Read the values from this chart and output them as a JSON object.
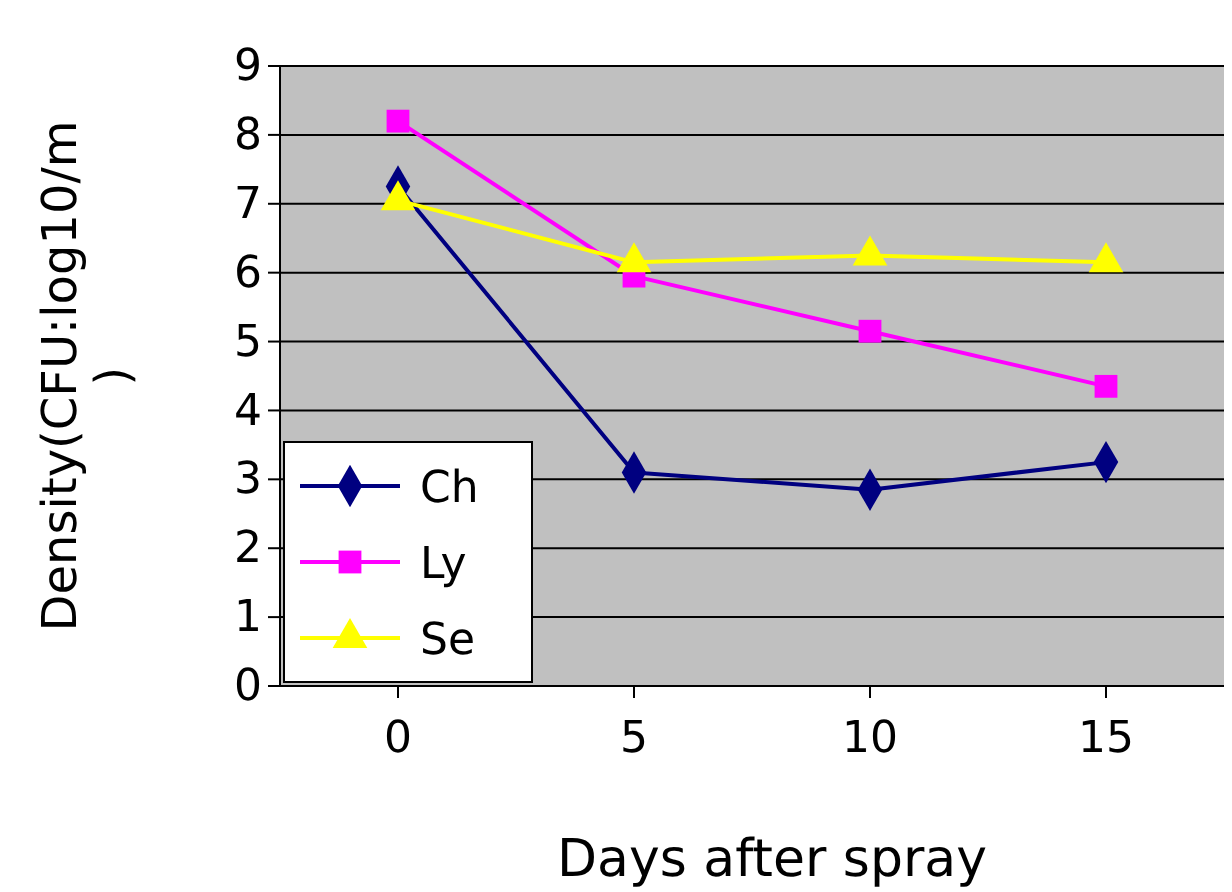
{
  "chart_data": {
    "type": "line",
    "xlabel": "Days after spray",
    "ylabel": "Density(CFU:log10/m\n)",
    "categories": [
      "0",
      "5",
      "10",
      "15"
    ],
    "series": [
      {
        "name": "Ch",
        "color": "#000080",
        "marker": "diamond",
        "values": [
          7.25,
          3.1,
          2.85,
          3.25
        ]
      },
      {
        "name": "Ly",
        "color": "#ff00ff",
        "marker": "square",
        "values": [
          8.2,
          5.95,
          5.15,
          4.35
        ]
      },
      {
        "name": "Se",
        "color": "#ffff00",
        "marker": "triangle",
        "values": [
          7.05,
          6.15,
          6.25,
          6.15
        ]
      }
    ],
    "ylim": [
      0,
      9
    ],
    "yticks": [
      0,
      1,
      2,
      3,
      4,
      5,
      6,
      7,
      8,
      9
    ],
    "grid": "y",
    "legend": "bottom left"
  }
}
